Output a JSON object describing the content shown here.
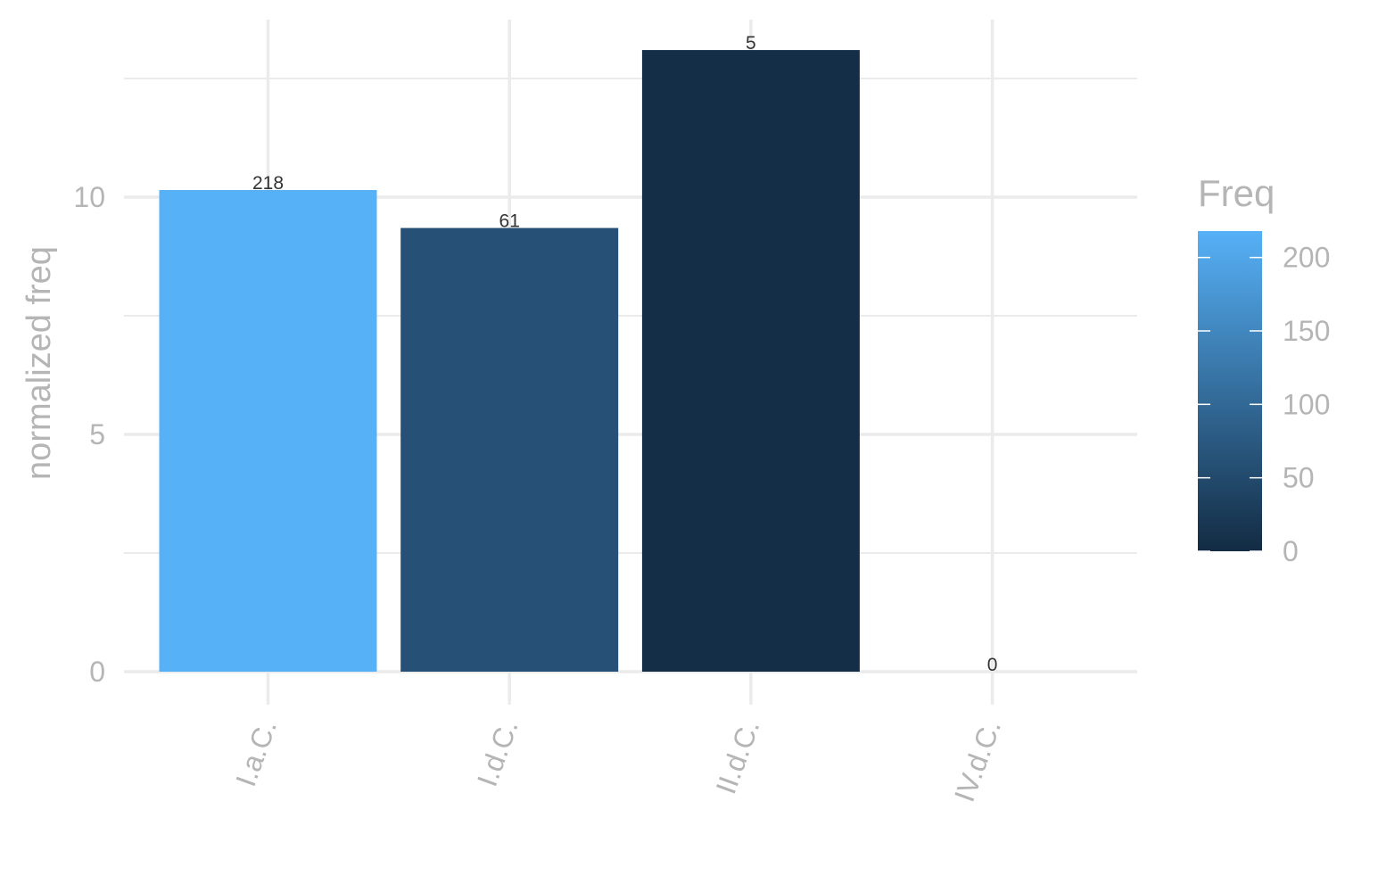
{
  "chart_data": {
    "type": "bar",
    "categories": [
      "I.a.C.",
      "I.d.C.",
      "II.d.C.",
      "IV.d.C."
    ],
    "values": [
      10.15,
      9.35,
      13.1,
      0
    ],
    "freq": [
      218,
      61,
      5,
      0
    ],
    "data_labels": [
      "218",
      "61",
      "5",
      "0"
    ],
    "ylabel": "normalized freq",
    "xlabel": "",
    "ylim": [
      0,
      13.5
    ],
    "y_ticks": [
      0,
      5,
      10
    ],
    "grid": true,
    "x_tick_rotation": "angled",
    "fill_by": "Freq",
    "legend": {
      "title": "Freq",
      "placement": "right",
      "type": "colorbar",
      "range": [
        0,
        218
      ],
      "ticks": [
        0,
        50,
        100,
        150,
        200
      ],
      "color_low": "#132B43",
      "color_high": "#56B1F7"
    }
  }
}
